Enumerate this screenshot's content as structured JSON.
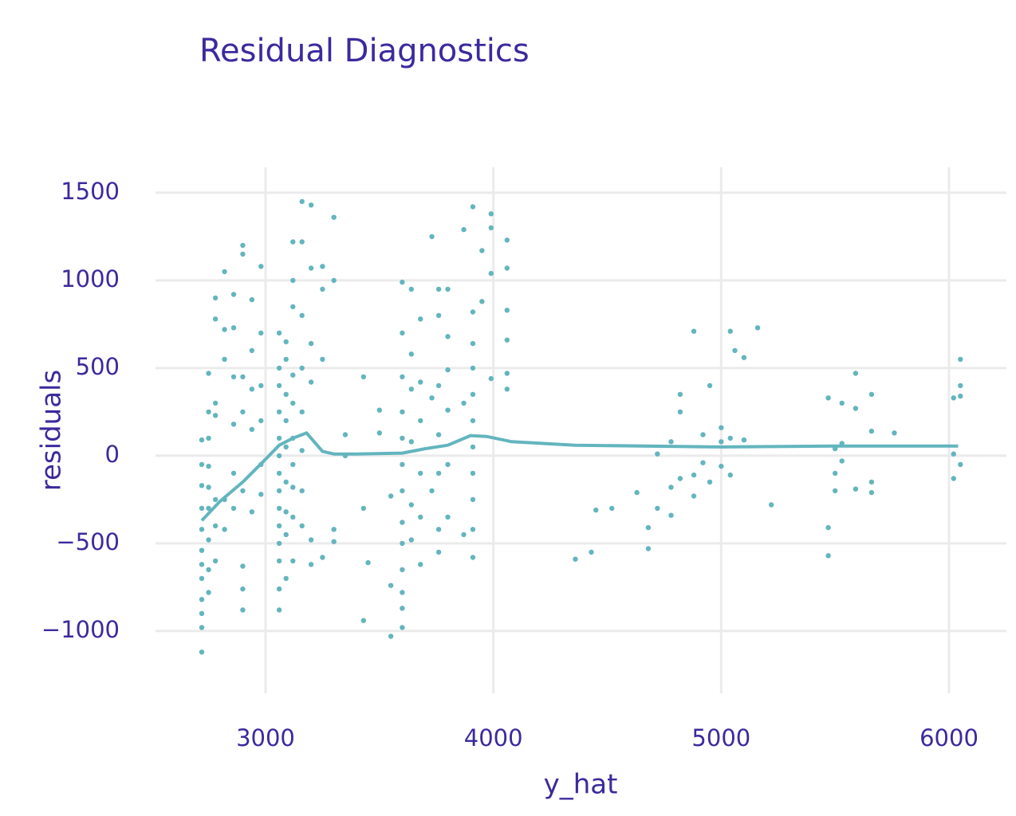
{
  "chart_data": {
    "type": "scatter",
    "title": "Residual Diagnostics",
    "x_label": "y_hat",
    "y_label": "residuals",
    "xlim": [
      2517,
      6252
    ],
    "ylim": [
      -1355,
      1645
    ],
    "xticks": [
      3000,
      4000,
      5000,
      6000
    ],
    "yticks": [
      {
        "value": -1000,
        "label": "−1000"
      },
      {
        "value": -500,
        "label": "−500"
      },
      0,
      500,
      1000,
      1500
    ],
    "grid": true,
    "series": [
      {
        "type": "scatter",
        "color": "#63b5be",
        "x": [
          2720,
          2720,
          2720,
          2720,
          2720,
          2720,
          2720,
          2720,
          2720,
          2720,
          2720,
          2720,
          2750,
          2750,
          2750,
          2750,
          2750,
          2750,
          2750,
          2750,
          2750,
          2780,
          2780,
          2780,
          2780,
          2780,
          2780,
          2780,
          2820,
          2820,
          2820,
          2820,
          2820,
          2860,
          2860,
          2860,
          2860,
          2860,
          2860,
          2900,
          2900,
          2900,
          2900,
          2900,
          2900,
          2900,
          2900,
          2940,
          2940,
          2940,
          2940,
          2940,
          2980,
          2980,
          2980,
          2980,
          2980,
          2980,
          3060,
          3060,
          3060,
          3060,
          3060,
          3060,
          3060,
          3060,
          3060,
          3060,
          3060,
          3060,
          3060,
          3060,
          3090,
          3090,
          3090,
          3090,
          3090,
          3090,
          3090,
          3090,
          3090,
          3120,
          3120,
          3120,
          3120,
          3120,
          3120,
          3120,
          3120,
          3120,
          3120,
          3160,
          3160,
          3160,
          3160,
          3160,
          3160,
          3160,
          3160,
          3200,
          3200,
          3200,
          3200,
          3200,
          3200,
          3250,
          3250,
          3250,
          3250,
          3300,
          3300,
          3300,
          3300,
          3350,
          3350,
          3430,
          3430,
          3430,
          3450,
          3500,
          3500,
          3550,
          3550,
          3550,
          3600,
          3600,
          3600,
          3600,
          3600,
          3600,
          3600,
          3600,
          3600,
          3600,
          3600,
          3600,
          3600,
          3640,
          3640,
          3640,
          3640,
          3640,
          3640,
          3680,
          3680,
          3680,
          3680,
          3680,
          3680,
          3730,
          3730,
          3730,
          3760,
          3760,
          3760,
          3760,
          3760,
          3760,
          3760,
          3800,
          3800,
          3800,
          3800,
          3800,
          3800,
          3870,
          3870,
          3870,
          3910,
          3910,
          3910,
          3910,
          3910,
          3910,
          3910,
          3910,
          3910,
          3910,
          3910,
          3950,
          3950,
          3990,
          3990,
          3990,
          3990,
          4060,
          4060,
          4060,
          4060,
          4060,
          4060,
          4360,
          4430,
          4450,
          4520,
          4630,
          4680,
          4680,
          4720,
          4720,
          4780,
          4780,
          4780,
          4820,
          4820,
          4820,
          4880,
          4880,
          4880,
          4920,
          4920,
          4950,
          4950,
          5000,
          5000,
          5000,
          5040,
          5040,
          5040,
          5060,
          5100,
          5100,
          5160,
          5220,
          5470,
          5470,
          5470,
          5500,
          5500,
          5500,
          5530,
          5530,
          5530,
          5590,
          5590,
          5590,
          5660,
          5660,
          5660,
          5660,
          5760,
          6020,
          6020,
          6020,
          6050,
          6050,
          6050,
          6050
        ],
        "y": [
          -1120,
          -980,
          -900,
          -820,
          -700,
          -620,
          -540,
          -420,
          -300,
          -170,
          -50,
          90,
          -780,
          -650,
          -480,
          -300,
          -180,
          -60,
          100,
          250,
          470,
          -600,
          -400,
          -250,
          230,
          300,
          780,
          900,
          -420,
          -250,
          550,
          720,
          1050,
          -300,
          -100,
          180,
          450,
          730,
          920,
          -880,
          -760,
          -630,
          -200,
          250,
          450,
          1200,
          1150,
          -320,
          150,
          380,
          600,
          890,
          -220,
          -50,
          200,
          400,
          1080,
          700,
          -880,
          -760,
          -600,
          -500,
          -400,
          -300,
          -200,
          -100,
          0,
          100,
          250,
          400,
          500,
          700,
          -700,
          -450,
          -320,
          -150,
          50,
          200,
          350,
          550,
          650,
          -600,
          -350,
          -180,
          -50,
          100,
          300,
          460,
          850,
          1220,
          1000,
          -400,
          -200,
          30,
          250,
          500,
          800,
          1450,
          1220,
          -620,
          -480,
          420,
          640,
          1070,
          1430,
          1080,
          950,
          550,
          -580,
          1360,
          1000,
          -490,
          -420,
          120,
          0,
          450,
          -300,
          -940,
          -610,
          260,
          130,
          -1030,
          -740,
          -230,
          -980,
          -870,
          -780,
          -650,
          -500,
          -380,
          -200,
          -50,
          100,
          250,
          450,
          700,
          990,
          -480,
          -280,
          80,
          380,
          580,
          950,
          -620,
          -350,
          -100,
          200,
          420,
          780,
          1250,
          330,
          -200,
          -550,
          -420,
          -100,
          120,
          400,
          800,
          950,
          -350,
          -50,
          260,
          490,
          680,
          950,
          1290,
          -450,
          300,
          -580,
          -420,
          -250,
          -100,
          50,
          200,
          350,
          500,
          640,
          820,
          1420,
          1170,
          880,
          1380,
          1300,
          1040,
          440,
          1230,
          1070,
          830,
          660,
          470,
          380,
          -590,
          -550,
          -310,
          -300,
          -210,
          -530,
          -410,
          -300,
          10,
          -180,
          -340,
          80,
          250,
          350,
          -130,
          -230,
          -110,
          710,
          120,
          -40,
          400,
          -150,
          160,
          -60,
          80,
          710,
          100,
          -110,
          600,
          560,
          90,
          730,
          -280,
          330,
          -410,
          -570,
          40,
          -100,
          -200,
          300,
          70,
          -30,
          470,
          270,
          -190,
          350,
          -150,
          -210,
          140,
          130,
          330,
          10,
          -130,
          550,
          400,
          340,
          -50
        ]
      },
      {
        "type": "line",
        "color": "#63b5be",
        "x": [
          2720,
          2800,
          2900,
          3000,
          3060,
          3120,
          3180,
          3250,
          3300,
          3400,
          3600,
          3700,
          3800,
          3900,
          3970,
          4080,
          4360,
          5000,
          5500,
          6040
        ],
        "y": [
          -370,
          -260,
          -150,
          -20,
          60,
          100,
          130,
          25,
          10,
          10,
          15,
          40,
          60,
          115,
          110,
          80,
          60,
          50,
          55,
          55
        ]
      }
    ]
  }
}
